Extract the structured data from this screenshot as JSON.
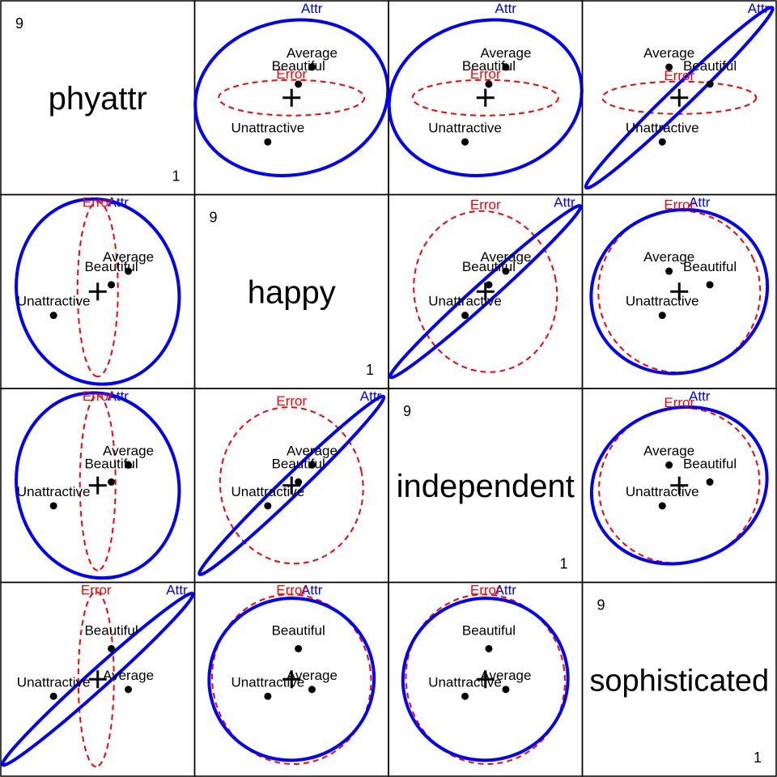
{
  "chart_data": {
    "type": "scatter",
    "variables": [
      "phyattr",
      "happy",
      "independent",
      "sophisticated"
    ],
    "scale_min": "1",
    "scale_max": "9",
    "groups": [
      {
        "name": "Beautiful",
        "means": {
          "phyattr": 6.0,
          "happy": 5.5,
          "independent": 5.3,
          "sophisticated": 6.2
        }
      },
      {
        "name": "Average",
        "means": {
          "phyattr": 6.5,
          "happy": 5.9,
          "independent": 5.8,
          "sophisticated": 5.0
        }
      },
      {
        "name": "Unattractive",
        "means": {
          "phyattr": 4.3,
          "happy": 4.6,
          "independent": 4.6,
          "sophisticated": 4.8
        }
      }
    ],
    "grand_mean": {
      "phyattr": 5.6,
      "happy": 5.3,
      "independent": 5.2,
      "sophisticated": 5.3
    },
    "ellipses": [
      {
        "name": "Attr",
        "color": "#0000FF",
        "style": "solid"
      },
      {
        "name": "Error",
        "color": "#FF0000",
        "style": "dashed"
      }
    ],
    "xlim": [
      1,
      9
    ],
    "ylim": [
      1,
      9
    ]
  },
  "colors": {
    "attr": "#0000FF",
    "error": "#FF0000",
    "points": "#000000"
  }
}
